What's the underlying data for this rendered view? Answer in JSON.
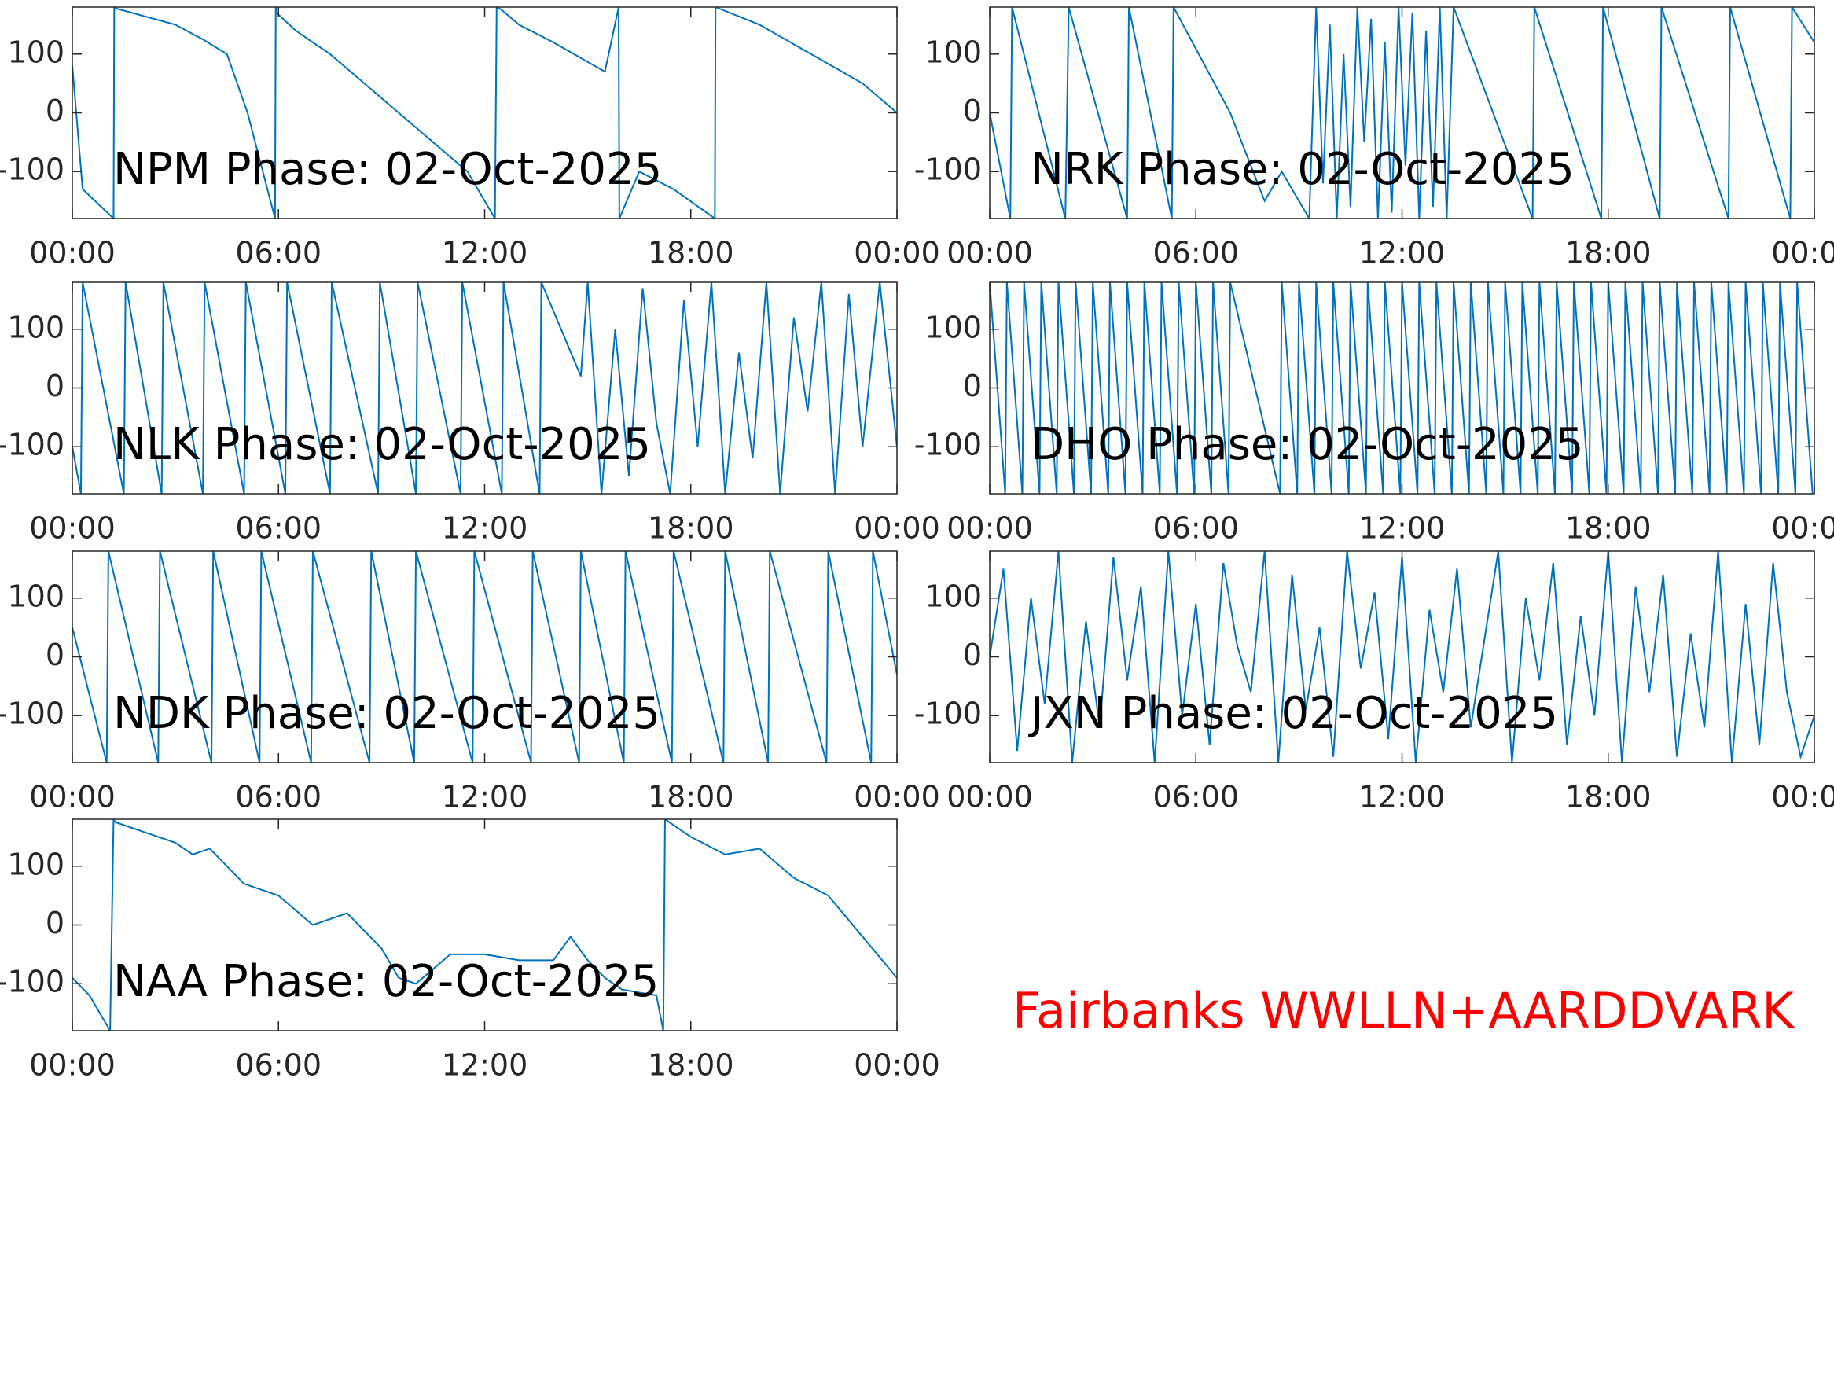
{
  "chart_data": [
    {
      "type": "line",
      "title": "NPM Phase: 02-Oct-2025",
      "color": "#0072bd",
      "xlim": [
        0,
        24
      ],
      "xticks": [
        {
          "value": 0,
          "label": "00:00"
        },
        {
          "value": 6,
          "label": "06:00"
        },
        {
          "value": 12,
          "label": "12:00"
        },
        {
          "value": 18,
          "label": "18:00"
        },
        {
          "value": 24,
          "label": "00:00"
        }
      ],
      "ylim": [
        -180,
        180
      ],
      "yticks": [
        -100,
        0,
        100
      ],
      "x": [
        0,
        0.2,
        0.3,
        1.2,
        1.22,
        1.25,
        3,
        3.8,
        4.5,
        5.1,
        5.9,
        5.92,
        5.95,
        6.5,
        7.5,
        8.5,
        9.5,
        10.5,
        11.5,
        12.3,
        12.35,
        12.5,
        13,
        14,
        15.5,
        15.9,
        15.92,
        16.5,
        17.5,
        18.7,
        18.72,
        20,
        21.5,
        23,
        24
      ],
      "values": [
        80,
        -60,
        -130,
        -180,
        180,
        178,
        150,
        125,
        100,
        0,
        -180,
        180,
        170,
        140,
        100,
        50,
        0,
        -50,
        -100,
        -180,
        180,
        175,
        150,
        120,
        70,
        180,
        -180,
        -100,
        -130,
        -180,
        180,
        150,
        100,
        50,
        0
      ]
    },
    {
      "type": "line",
      "title": "NRK Phase: 02-Oct-2025",
      "color": "#0072bd",
      "xlim": [
        0,
        24
      ],
      "xticks": [
        {
          "value": 0,
          "label": "00:00"
        },
        {
          "value": 6,
          "label": "06:00"
        },
        {
          "value": 12,
          "label": "12:00"
        },
        {
          "value": 18,
          "label": "18:00"
        },
        {
          "value": 24,
          "label": "00:00"
        }
      ],
      "ylim": [
        -180,
        180
      ],
      "yticks": [
        -100,
        0,
        100
      ],
      "x": [
        0,
        0.6,
        0.65,
        2.2,
        2.3,
        4.0,
        4.05,
        5.3,
        5.35,
        7,
        8,
        8.5,
        9.3,
        9.5,
        9.7,
        9.9,
        10.1,
        10.3,
        10.5,
        10.7,
        10.9,
        11.1,
        11.3,
        11.5,
        11.7,
        11.9,
        12.1,
        12.3,
        12.5,
        12.7,
        12.9,
        13.1,
        13.3,
        13.5,
        15.8,
        15.85,
        17.8,
        17.85,
        19.5,
        19.55,
        21.5,
        21.55,
        23.3,
        23.35,
        24
      ],
      "values": [
        0,
        -180,
        180,
        -180,
        180,
        -180,
        180,
        -180,
        180,
        0,
        -150,
        -100,
        -180,
        180,
        -120,
        150,
        -180,
        100,
        -160,
        180,
        -50,
        160,
        -180,
        120,
        -170,
        180,
        -90,
        170,
        -180,
        140,
        -160,
        180,
        -180,
        180,
        -180,
        180,
        -180,
        180,
        -180,
        180,
        -180,
        180,
        -180,
        180,
        120
      ]
    },
    {
      "type": "line",
      "title": "NLK Phase: 02-Oct-2025",
      "color": "#0072bd",
      "xlim": [
        0,
        24
      ],
      "xticks": [
        {
          "value": 0,
          "label": "00:00"
        },
        {
          "value": 6,
          "label": "06:00"
        },
        {
          "value": 12,
          "label": "12:00"
        },
        {
          "value": 18,
          "label": "18:00"
        },
        {
          "value": 24,
          "label": "00:00"
        }
      ],
      "ylim": [
        -180,
        180
      ],
      "yticks": [
        -100,
        0,
        100
      ],
      "x": [
        0,
        0.25,
        0.3,
        1.5,
        1.55,
        2.6,
        2.65,
        3.8,
        3.85,
        5.0,
        5.05,
        6.2,
        6.25,
        7.5,
        7.55,
        8.9,
        8.95,
        10.0,
        10.05,
        11.3,
        11.35,
        12.5,
        12.55,
        13.6,
        13.65,
        14.8,
        15.0,
        15.4,
        15.8,
        16.2,
        16.6,
        17.0,
        17.4,
        17.8,
        18.2,
        18.6,
        19.0,
        19.4,
        19.8,
        20.2,
        20.6,
        21.0,
        21.4,
        21.8,
        22.2,
        22.6,
        23.0,
        23.5,
        24
      ],
      "values": [
        -100,
        -180,
        180,
        -180,
        180,
        -180,
        180,
        -180,
        180,
        -180,
        180,
        -180,
        180,
        -180,
        180,
        -180,
        180,
        -180,
        180,
        -180,
        180,
        -180,
        180,
        -180,
        180,
        20,
        180,
        -180,
        100,
        -150,
        170,
        -60,
        -180,
        150,
        -100,
        180,
        -180,
        60,
        -120,
        180,
        -180,
        120,
        -40,
        180,
        -180,
        160,
        -100,
        180,
        -100
      ]
    },
    {
      "type": "line",
      "title": "DHO Phase: 02-Oct-2025",
      "color": "#0072bd",
      "xlim": [
        0,
        24
      ],
      "xticks": [
        {
          "value": 0,
          "label": "00:00"
        },
        {
          "value": 6,
          "label": "06:00"
        },
        {
          "value": 12,
          "label": "12:00"
        },
        {
          "value": 18,
          "label": "18:00"
        },
        {
          "value": 24,
          "label": "00:00"
        }
      ],
      "ylim": [
        -180,
        180
      ],
      "yticks": [
        -100,
        0,
        100
      ],
      "x": [
        0,
        0.45,
        0.5,
        0.95,
        1,
        1.45,
        1.5,
        1.95,
        2,
        2.45,
        2.5,
        2.95,
        3,
        3.45,
        3.5,
        3.95,
        4,
        4.45,
        4.5,
        4.95,
        5,
        5.45,
        5.5,
        5.95,
        6,
        6.45,
        6.5,
        6.95,
        7,
        8.45,
        8.5,
        8.95,
        9,
        9.45,
        9.5,
        9.95,
        10,
        10.45,
        10.5,
        10.95,
        11,
        11.45,
        11.5,
        11.95,
        12,
        12.45,
        12.5,
        12.95,
        13,
        13.45,
        13.5,
        13.95,
        14,
        14.45,
        14.5,
        14.95,
        15,
        15.45,
        15.5,
        15.95,
        16,
        16.45,
        16.5,
        16.95,
        17,
        17.45,
        17.5,
        17.95,
        18,
        18.45,
        18.5,
        18.95,
        19,
        19.45,
        19.5,
        19.95,
        20,
        20.45,
        20.5,
        20.95,
        21,
        21.45,
        21.5,
        21.95,
        22,
        22.45,
        22.5,
        22.95,
        23,
        23.45,
        23.5,
        23.95
      ],
      "values": [
        180,
        -180,
        180,
        -180,
        180,
        -180,
        180,
        -180,
        180,
        -180,
        180,
        -180,
        180,
        -180,
        180,
        -180,
        180,
        -180,
        180,
        -180,
        180,
        -180,
        180,
        -180,
        180,
        -180,
        180,
        -180,
        180,
        -180,
        180,
        -180,
        180,
        -180,
        180,
        -180,
        180,
        -180,
        180,
        -180,
        180,
        -180,
        180,
        -180,
        180,
        -180,
        180,
        -180,
        180,
        -180,
        180,
        -180,
        180,
        -180,
        180,
        -180,
        180,
        -180,
        180,
        -180,
        180,
        -180,
        180,
        -180,
        180,
        -180,
        180,
        -180,
        180,
        -180,
        180,
        -180,
        180,
        -180,
        180,
        -180,
        180,
        -180,
        180,
        -180,
        180,
        -180,
        180,
        -180,
        180,
        -180,
        180,
        -180,
        180,
        -180,
        180,
        -180
      ]
    },
    {
      "type": "line",
      "title": "NDK Phase: 02-Oct-2025",
      "color": "#0072bd",
      "xlim": [
        0,
        24
      ],
      "xticks": [
        {
          "value": 0,
          "label": "00:00"
        },
        {
          "value": 6,
          "label": "06:00"
        },
        {
          "value": 12,
          "label": "12:00"
        },
        {
          "value": 18,
          "label": "18:00"
        },
        {
          "value": 24,
          "label": "00:00"
        }
      ],
      "ylim": [
        -180,
        180
      ],
      "yticks": [
        -100,
        0,
        100
      ],
      "x": [
        0,
        1.0,
        1.05,
        2.5,
        2.55,
        4.05,
        4.1,
        5.45,
        5.5,
        6.95,
        7.0,
        8.65,
        8.7,
        9.95,
        10.0,
        11.65,
        11.7,
        13.35,
        13.4,
        14.75,
        14.8,
        16.05,
        16.1,
        17.45,
        17.5,
        18.95,
        19.0,
        20.25,
        20.3,
        21.95,
        22.0,
        23.25,
        23.3,
        24
      ],
      "values": [
        50,
        -180,
        180,
        -180,
        180,
        -180,
        180,
        -180,
        180,
        -180,
        180,
        -180,
        180,
        -180,
        180,
        -180,
        180,
        -180,
        180,
        -180,
        180,
        -180,
        180,
        -180,
        180,
        -180,
        180,
        -180,
        180,
        -180,
        180,
        -180,
        180,
        -30
      ]
    },
    {
      "type": "line",
      "title": "JXN Phase: 02-Oct-2025",
      "color": "#0072bd",
      "xlim": [
        0,
        24
      ],
      "xticks": [
        {
          "value": 0,
          "label": "00:00"
        },
        {
          "value": 6,
          "label": "06:00"
        },
        {
          "value": 12,
          "label": "12:00"
        },
        {
          "value": 18,
          "label": "18:00"
        },
        {
          "value": 24,
          "label": "00:00"
        }
      ],
      "ylim": [
        -180,
        180
      ],
      "yticks": [
        -100,
        0,
        100
      ],
      "x": [
        0,
        0.4,
        0.8,
        1.2,
        1.6,
        2,
        2.4,
        2.8,
        3.2,
        3.6,
        4,
        4.4,
        4.8,
        5.2,
        5.6,
        6,
        6.4,
        6.8,
        7.2,
        7.6,
        8,
        8.4,
        8.8,
        9.2,
        9.6,
        10,
        10.4,
        10.8,
        11.2,
        11.6,
        12,
        12.4,
        12.8,
        13.2,
        13.6,
        14,
        14.4,
        14.8,
        15.2,
        15.6,
        16,
        16.4,
        16.8,
        17.2,
        17.6,
        18,
        18.4,
        18.8,
        19.2,
        19.6,
        20,
        20.4,
        20.8,
        21.2,
        21.6,
        22,
        22.4,
        22.8,
        23.2,
        23.6,
        24
      ],
      "values": [
        0,
        150,
        -160,
        100,
        -80,
        180,
        -180,
        60,
        -120,
        170,
        -40,
        120,
        -180,
        180,
        -100,
        90,
        -150,
        160,
        20,
        -60,
        180,
        -180,
        140,
        -90,
        50,
        -170,
        180,
        -20,
        110,
        -140,
        170,
        -180,
        80,
        -60,
        150,
        -120,
        30,
        180,
        -180,
        100,
        -40,
        160,
        -150,
        70,
        -100,
        180,
        -180,
        120,
        -60,
        140,
        -170,
        40,
        -120,
        180,
        -180,
        90,
        -150,
        160,
        -60,
        -170,
        -100
      ]
    },
    {
      "type": "line",
      "title": "NAA Phase: 02-Oct-2025",
      "color": "#0072bd",
      "xlim": [
        0,
        24
      ],
      "xticks": [
        {
          "value": 0,
          "label": "00:00"
        },
        {
          "value": 6,
          "label": "06:00"
        },
        {
          "value": 12,
          "label": "12:00"
        },
        {
          "value": 18,
          "label": "18:00"
        },
        {
          "value": 24,
          "label": "00:00"
        }
      ],
      "ylim": [
        -180,
        180
      ],
      "yticks": [
        -100,
        0,
        100
      ],
      "x": [
        0,
        0.5,
        1.1,
        1.2,
        1.25,
        2,
        3,
        3.5,
        4,
        5,
        6,
        7,
        8,
        9,
        9.5,
        10,
        11,
        12,
        13,
        14,
        14.5,
        15,
        15.5,
        16,
        17,
        17.2,
        17.25,
        18,
        19,
        20,
        21,
        22,
        23,
        24
      ],
      "values": [
        -90,
        -120,
        -180,
        180,
        175,
        160,
        140,
        120,
        130,
        70,
        50,
        0,
        20,
        -40,
        -90,
        -100,
        -50,
        -50,
        -60,
        -60,
        -20,
        -60,
        -90,
        -110,
        -120,
        -180,
        180,
        150,
        120,
        130,
        80,
        50,
        -20,
        -90
      ]
    }
  ],
  "annotation": {
    "text": "Fairbanks WWLLN+AARDDVARK",
    "color": "#ff0000"
  }
}
